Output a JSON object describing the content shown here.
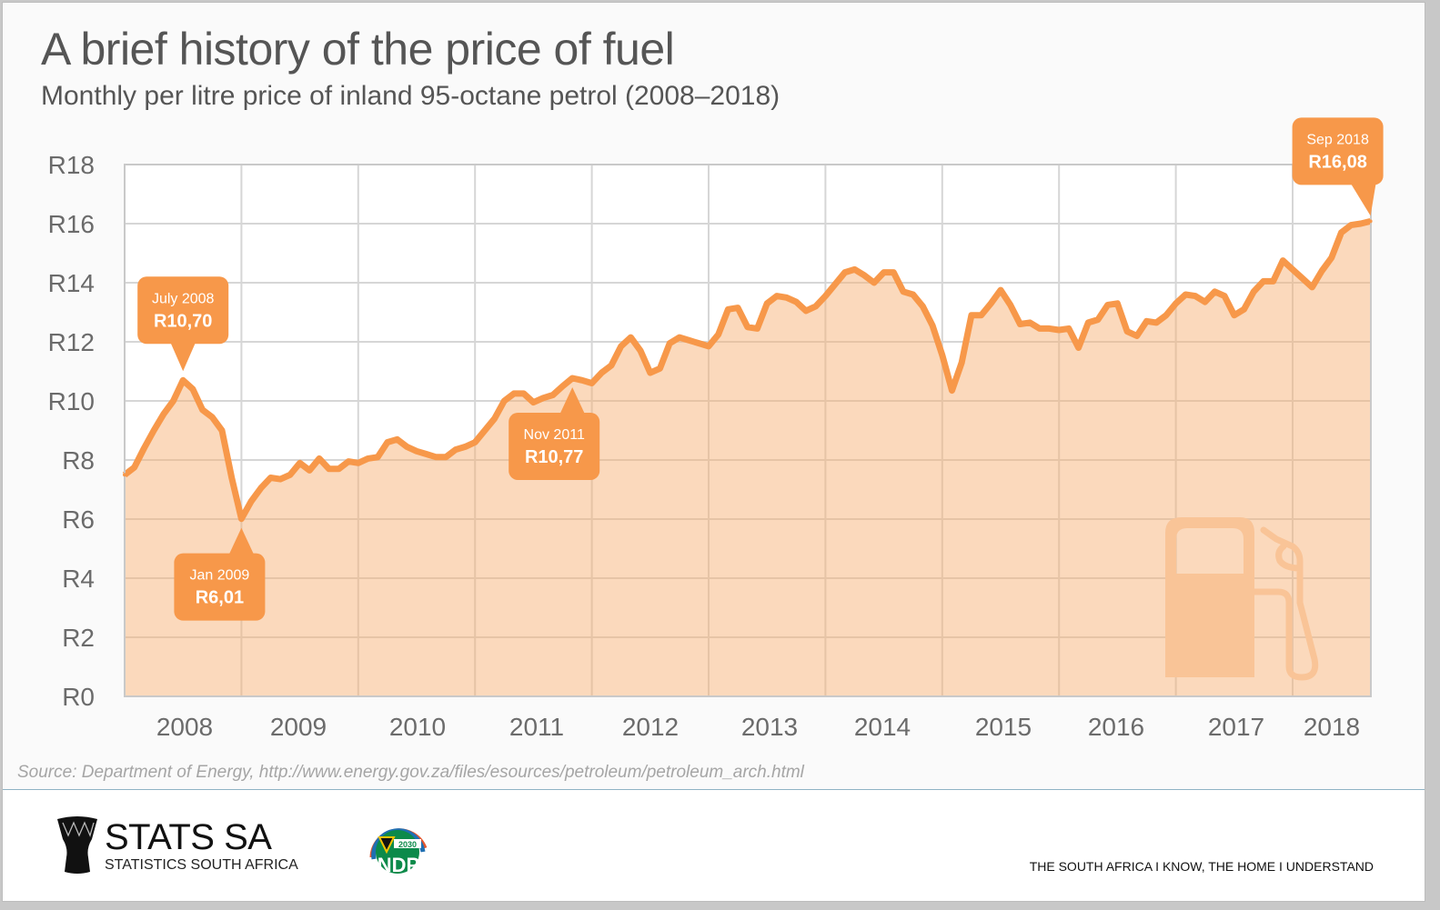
{
  "title": "A brief history of the price of fuel",
  "subtitle": "Monthly per litre price of inland 95-octane petrol (2008–2018)",
  "source": "Source: Department of Energy,  http://www.energy.gov.za/files/esources/petroleum/petroleum_arch.html",
  "footer": {
    "logo_name": "STATS SA",
    "logo_sub": "STATISTICS SOUTH AFRICA",
    "ndp_text": "NDP",
    "ndp_year": "2030",
    "tagline": "THE SOUTH AFRICA I KNOW, THE HOME I UNDERSTAND"
  },
  "colors": {
    "line": "#f7984a",
    "fill": "#fbd9bc",
    "callout": "#f7984a",
    "grid": "#d6d6d6",
    "icon": "#f9c497"
  },
  "decor_icon": "fuel-pump-icon",
  "chart_data": {
    "type": "area",
    "title": "A brief history of the price of fuel",
    "subtitle": "Monthly per litre price of inland 95-octane petrol (2008–2018)",
    "xlabel": "",
    "ylabel": "",
    "ylim": [
      0,
      18
    ],
    "yticks": [
      0,
      2,
      4,
      6,
      8,
      10,
      12,
      14,
      16,
      18
    ],
    "ytick_labels": [
      "R0",
      "R2",
      "R4",
      "R6",
      "R8",
      "R10",
      "R12",
      "R14",
      "R16",
      "R18"
    ],
    "xtick_labels": [
      "2008",
      "2009",
      "2010",
      "2011",
      "2012",
      "2013",
      "2014",
      "2015",
      "2016",
      "2017",
      "2018"
    ],
    "x_start": "Jan 2008",
    "x_end": "Sep 2018",
    "grid": true,
    "series": [
      {
        "name": "Inland 95-octane petrol (R/litre)",
        "values": [
          7.5,
          7.75,
          8.4,
          9.0,
          9.55,
          10.0,
          10.7,
          10.4,
          9.7,
          9.45,
          9.0,
          7.4,
          6.01,
          6.6,
          7.05,
          7.4,
          7.35,
          7.5,
          7.9,
          7.65,
          8.05,
          7.7,
          7.7,
          7.95,
          7.9,
          8.05,
          8.1,
          8.6,
          8.7,
          8.45,
          8.3,
          8.2,
          8.1,
          8.1,
          8.35,
          8.45,
          8.6,
          9.0,
          9.4,
          10.0,
          10.25,
          10.25,
          9.95,
          10.1,
          10.2,
          10.5,
          10.77,
          10.7,
          10.6,
          10.95,
          11.2,
          11.85,
          12.15,
          11.7,
          10.95,
          11.1,
          11.95,
          12.15,
          12.05,
          11.95,
          11.85,
          12.25,
          13.1,
          13.15,
          12.5,
          12.45,
          13.3,
          13.55,
          13.5,
          13.35,
          13.05,
          13.2,
          13.55,
          13.95,
          14.35,
          14.45,
          14.25,
          14.0,
          14.35,
          14.35,
          13.7,
          13.6,
          13.2,
          12.55,
          11.55,
          10.35,
          11.3,
          12.9,
          12.9,
          13.3,
          13.75,
          13.25,
          12.6,
          12.65,
          12.45,
          12.45,
          12.4,
          12.45,
          11.8,
          12.65,
          12.75,
          13.25,
          13.3,
          12.35,
          12.2,
          12.7,
          12.65,
          12.9,
          13.3,
          13.6,
          13.55,
          13.35,
          13.7,
          13.55,
          12.9,
          13.1,
          13.7,
          14.05,
          14.05,
          14.75,
          14.45,
          14.15,
          13.85,
          14.4,
          14.85,
          15.7,
          15.95,
          16.0,
          16.08
        ]
      }
    ],
    "annotations": [
      {
        "date": "July 2008",
        "value": "R10,70",
        "index": 6,
        "position": "above"
      },
      {
        "date": "Jan 2009",
        "value": "R6,01",
        "index": 12,
        "position": "below"
      },
      {
        "date": "Nov 2011",
        "value": "R10,77",
        "index": 46,
        "position": "below"
      },
      {
        "date": "Sep 2018",
        "value": "R16,08",
        "index": 128,
        "position": "above-left"
      }
    ]
  }
}
